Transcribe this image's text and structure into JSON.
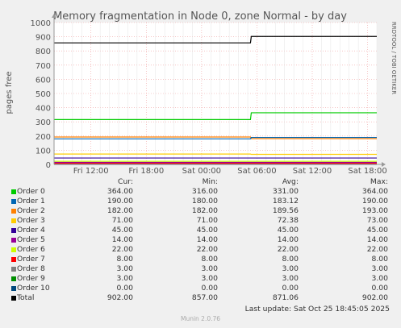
{
  "chart_data": {
    "type": "line",
    "title": "Memory fragmentation in Node 0, zone Normal - by day",
    "ylabel": "pages free",
    "side_label": "RRDTOOL / TOBI OETIKER",
    "ylim": [
      0,
      1000
    ],
    "yticks": [
      0,
      100,
      200,
      300,
      400,
      500,
      600,
      700,
      800,
      900,
      1000
    ],
    "x_tick_labels": [
      "Fri 12:00",
      "Fri 18:00",
      "Sat 00:00",
      "Sat 06:00",
      "Sat 12:00",
      "Sat 18:00"
    ],
    "x_range_hours": [
      8,
      43
    ],
    "x_tick_hours": [
      12,
      18,
      24,
      30,
      36,
      42
    ],
    "step_hour": 29.3,
    "grid": true,
    "series": [
      {
        "name": "Order 0",
        "color": "#00cc00",
        "before": 316,
        "after": 364
      },
      {
        "name": "Order 1",
        "color": "#0066b3",
        "before": 180,
        "after": 190
      },
      {
        "name": "Order 2",
        "color": "#ff8000",
        "before": 193,
        "after": 182
      },
      {
        "name": "Order 3",
        "color": "#ffcc00",
        "before": 73,
        "after": 71
      },
      {
        "name": "Order 4",
        "color": "#330099",
        "before": 45,
        "after": 45
      },
      {
        "name": "Order 5",
        "color": "#990099",
        "before": 14,
        "after": 14
      },
      {
        "name": "Order 6",
        "color": "#ccff00",
        "before": 22,
        "after": 22
      },
      {
        "name": "Order 7",
        "color": "#ff0000",
        "before": 8,
        "after": 8
      },
      {
        "name": "Order 8",
        "color": "#808080",
        "before": 3,
        "after": 3
      },
      {
        "name": "Order 9",
        "color": "#008f00",
        "before": 3,
        "after": 3
      },
      {
        "name": "Order 10",
        "color": "#00487d",
        "before": 0,
        "after": 0
      },
      {
        "name": "Total",
        "color": "#000000",
        "before": 857,
        "after": 902
      }
    ]
  },
  "legend": {
    "headers": [
      "Cur:",
      "Min:",
      "Avg:",
      "Max:"
    ],
    "rows": [
      {
        "name": "Order 0",
        "cur": "364.00",
        "min": "316.00",
        "avg": "331.00",
        "max": "364.00"
      },
      {
        "name": "Order 1",
        "cur": "190.00",
        "min": "180.00",
        "avg": "183.12",
        "max": "190.00"
      },
      {
        "name": "Order 2",
        "cur": "182.00",
        "min": "182.00",
        "avg": "189.56",
        "max": "193.00"
      },
      {
        "name": "Order 3",
        "cur": "71.00",
        "min": "71.00",
        "avg": "72.38",
        "max": "73.00"
      },
      {
        "name": "Order 4",
        "cur": "45.00",
        "min": "45.00",
        "avg": "45.00",
        "max": "45.00"
      },
      {
        "name": "Order 5",
        "cur": "14.00",
        "min": "14.00",
        "avg": "14.00",
        "max": "14.00"
      },
      {
        "name": "Order 6",
        "cur": "22.00",
        "min": "22.00",
        "avg": "22.00",
        "max": "22.00"
      },
      {
        "name": "Order 7",
        "cur": "8.00",
        "min": "8.00",
        "avg": "8.00",
        "max": "8.00"
      },
      {
        "name": "Order 8",
        "cur": "3.00",
        "min": "3.00",
        "avg": "3.00",
        "max": "3.00"
      },
      {
        "name": "Order 9",
        "cur": "3.00",
        "min": "3.00",
        "avg": "3.00",
        "max": "3.00"
      },
      {
        "name": "Order 10",
        "cur": "0.00",
        "min": "0.00",
        "avg": "0.00",
        "max": "0.00"
      },
      {
        "name": "Total",
        "cur": "902.00",
        "min": "857.00",
        "avg": "871.06",
        "max": "902.00"
      }
    ]
  },
  "last_update": "Last update: Sat Oct 25 18:45:05 2025",
  "footer": "Munin 2.0.76"
}
